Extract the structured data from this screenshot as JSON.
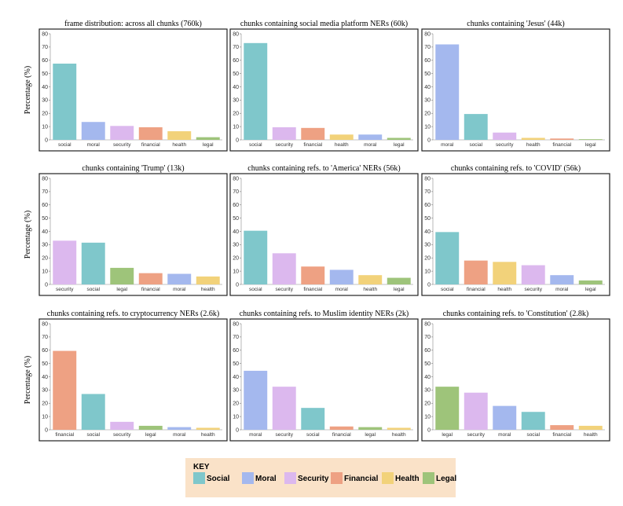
{
  "y_axis_label": "Percentage (%)",
  "colors": {
    "social": "#7fc7cb",
    "moral": "#a4b8ee",
    "security": "#dcb8ee",
    "financial": "#eea183",
    "health": "#f2d27a",
    "legal": "#9ec47a",
    "key_background": "#fae2c8"
  },
  "key": {
    "title": "KEY",
    "items": [
      {
        "id": "social",
        "label": "Social"
      },
      {
        "id": "moral",
        "label": "Moral"
      },
      {
        "id": "security",
        "label": "Security"
      },
      {
        "id": "financial",
        "label": "Financial"
      },
      {
        "id": "health",
        "label": "Health"
      },
      {
        "id": "legal",
        "label": "Legal"
      }
    ]
  },
  "chart_data": [
    {
      "type": "bar",
      "title": "frame distribution: across all chunks (760k)",
      "ylabel": "Percentage (%)",
      "ylim": [
        0,
        80
      ],
      "yticks": [
        0,
        10,
        20,
        30,
        40,
        50,
        60,
        70,
        80
      ],
      "categories": [
        "social",
        "moral",
        "security",
        "financial",
        "health",
        "legal"
      ],
      "values": [
        57.5,
        13.5,
        10.5,
        9.5,
        6.5,
        2
      ]
    },
    {
      "type": "bar",
      "title": "chunks containing social media platform NERs (60k)",
      "ylabel": "",
      "ylim": [
        0,
        80
      ],
      "yticks": [
        0,
        10,
        20,
        30,
        40,
        50,
        60,
        70,
        80
      ],
      "categories": [
        "social",
        "security",
        "financial",
        "health",
        "moral",
        "legal"
      ],
      "values": [
        73,
        9.5,
        9,
        4,
        4,
        1.5
      ]
    },
    {
      "type": "bar",
      "title": "chunks containing 'Jesus' (44k)",
      "ylabel": "",
      "ylim": [
        0,
        80
      ],
      "yticks": [
        0,
        10,
        20,
        30,
        40,
        50,
        60,
        70,
        80
      ],
      "categories": [
        "moral",
        "social",
        "security",
        "health",
        "financial",
        "legal"
      ],
      "values": [
        72,
        19.5,
        5.5,
        1.5,
        1,
        0.5
      ]
    },
    {
      "type": "bar",
      "title": "chunks containing 'Trump' (13k)",
      "ylabel": "Percentage (%)",
      "ylim": [
        0,
        80
      ],
      "yticks": [
        0,
        10,
        20,
        30,
        40,
        50,
        60,
        70,
        80
      ],
      "categories": [
        "security",
        "social",
        "legal",
        "financial",
        "moral",
        "health"
      ],
      "values": [
        33,
        31.5,
        12.5,
        8.5,
        8,
        6
      ]
    },
    {
      "type": "bar",
      "title": "chunks containing refs. to 'America' NERs (56k)",
      "ylabel": "",
      "ylim": [
        0,
        80
      ],
      "yticks": [
        0,
        10,
        20,
        30,
        40,
        50,
        60,
        70,
        80
      ],
      "categories": [
        "social",
        "security",
        "financial",
        "moral",
        "health",
        "legal"
      ],
      "values": [
        40.5,
        23.5,
        13.5,
        11,
        7,
        5
      ]
    },
    {
      "type": "bar",
      "title": "chunks containing refs. to 'COVID' (56k)",
      "ylabel": "",
      "ylim": [
        0,
        80
      ],
      "yticks": [
        0,
        10,
        20,
        30,
        40,
        50,
        60,
        70,
        80
      ],
      "categories": [
        "social",
        "financial",
        "health",
        "security",
        "moral",
        "legal"
      ],
      "values": [
        39.5,
        18,
        17,
        14.5,
        7,
        3
      ]
    },
    {
      "type": "bar",
      "title": "chunks containing refs. to cryptocurrency NERs (2.6k)",
      "ylabel": "Percentage (%)",
      "ylim": [
        0,
        80
      ],
      "yticks": [
        0,
        10,
        20,
        30,
        40,
        50,
        60,
        70,
        80
      ],
      "categories": [
        "financial",
        "social",
        "security",
        "legal",
        "moral",
        "health"
      ],
      "values": [
        59.5,
        27,
        6,
        3,
        2,
        1.5
      ]
    },
    {
      "type": "bar",
      "title": "chunks containing refs. to Muslim identity NERs (2k)",
      "ylabel": "",
      "ylim": [
        0,
        80
      ],
      "yticks": [
        0,
        10,
        20,
        30,
        40,
        50,
        60,
        70,
        80
      ],
      "categories": [
        "moral",
        "security",
        "social",
        "financial",
        "legal",
        "health"
      ],
      "values": [
        44.5,
        32.5,
        16.5,
        2.5,
        2,
        1.5
      ]
    },
    {
      "type": "bar",
      "title": "chunks containing refs. to 'Constitution' (2.8k)",
      "ylabel": "",
      "ylim": [
        0,
        80
      ],
      "yticks": [
        0,
        10,
        20,
        30,
        40,
        50,
        60,
        70,
        80
      ],
      "categories": [
        "legal",
        "security",
        "moral",
        "social",
        "financial",
        "health"
      ],
      "values": [
        32.5,
        28,
        18,
        13.5,
        3.5,
        3
      ]
    }
  ]
}
